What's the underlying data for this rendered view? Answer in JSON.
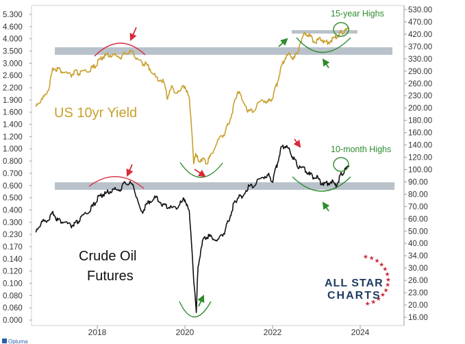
{
  "chart_data": {
    "type": "line",
    "title": "",
    "x_axis": {
      "ticks": [
        "2018",
        "2020",
        "2022",
        "2024"
      ],
      "range": [
        "2016-06",
        "2025-01"
      ]
    },
    "left_axis": {
      "scale": "log",
      "ticks": [
        "5.300",
        "4.600",
        "4.000",
        "3.500",
        "3.000",
        "2.600",
        "2.200",
        "1.900",
        "1.600",
        "1.400",
        "1.200",
        "1.000",
        "0.800",
        "0.700",
        "0.600",
        "0.500",
        "0.400",
        "0.300",
        "0.230",
        "0.170",
        "0.140",
        "0.120",
        "0.100",
        "0.080",
        "0.060",
        "0.000"
      ]
    },
    "right_axis": {
      "scale": "log",
      "ticks": [
        "530.00",
        "470.00",
        "420.00",
        "370.00",
        "330.00",
        "290.00",
        "260.00",
        "230.00",
        "200.00",
        "180.00",
        "160.00",
        "140.00",
        "120.00",
        "100.00",
        "90.00",
        "80.00",
        "70.00",
        "60.00",
        "50.00",
        "40.00",
        "34.00",
        "30.00",
        "26.00",
        "23.00",
        "20.00",
        "16.00"
      ]
    },
    "series": [
      {
        "name": "US 10yr Yield",
        "color": "#c8a02c",
        "x": [
          2016.6,
          2016.75,
          2016.9,
          2017.0,
          2017.1,
          2017.25,
          2017.4,
          2017.5,
          2017.6,
          2017.75,
          2017.9,
          2018.0,
          2018.1,
          2018.2,
          2018.35,
          2018.5,
          2018.6,
          2018.75,
          2018.85,
          2019.0,
          2019.1,
          2019.2,
          2019.35,
          2019.5,
          2019.6,
          2019.7,
          2019.85,
          2020.0,
          2020.1,
          2020.2,
          2020.25,
          2020.3,
          2020.4,
          2020.5,
          2020.6,
          2020.75,
          2020.9,
          2021.0,
          2021.1,
          2021.2,
          2021.3,
          2021.45,
          2021.6,
          2021.75,
          2021.9,
          2022.0,
          2022.1,
          2022.2,
          2022.3,
          2022.4,
          2022.5,
          2022.6,
          2022.75,
          2022.85,
          2023.0,
          2023.1,
          2023.2,
          2023.35,
          2023.45,
          2023.55,
          2023.65,
          2023.75
        ],
        "values": [
          1.45,
          1.55,
          1.85,
          2.45,
          2.42,
          2.3,
          2.2,
          2.32,
          2.25,
          2.35,
          2.45,
          2.62,
          2.85,
          2.95,
          2.98,
          2.85,
          2.95,
          3.15,
          2.95,
          2.65,
          2.6,
          2.45,
          2.1,
          2.05,
          1.6,
          1.85,
          1.7,
          1.9,
          1.55,
          0.6,
          0.72,
          0.64,
          0.66,
          0.62,
          0.7,
          0.85,
          0.95,
          1.1,
          1.35,
          1.75,
          1.6,
          1.3,
          1.35,
          1.55,
          1.5,
          1.6,
          1.95,
          2.5,
          2.9,
          3.0,
          2.8,
          3.3,
          4.1,
          3.85,
          3.55,
          3.8,
          3.5,
          3.7,
          3.8,
          4.1,
          4.2,
          4.3
        ]
      },
      {
        "name": "Crude Oil Futures",
        "color": "#111111",
        "x": [
          2016.6,
          2016.75,
          2016.9,
          2017.0,
          2017.1,
          2017.25,
          2017.4,
          2017.5,
          2017.6,
          2017.75,
          2017.9,
          2018.0,
          2018.1,
          2018.2,
          2018.35,
          2018.5,
          2018.6,
          2018.75,
          2018.85,
          2019.0,
          2019.1,
          2019.2,
          2019.35,
          2019.5,
          2019.6,
          2019.75,
          2019.9,
          2020.0,
          2020.1,
          2020.2,
          2020.26,
          2020.3,
          2020.4,
          2020.5,
          2020.6,
          2020.75,
          2020.9,
          2021.0,
          2021.1,
          2021.2,
          2021.3,
          2021.45,
          2021.6,
          2021.75,
          2021.9,
          2022.0,
          2022.1,
          2022.2,
          2022.3,
          2022.4,
          2022.5,
          2022.6,
          2022.75,
          2022.85,
          2023.0,
          2023.1,
          2023.2,
          2023.35,
          2023.45,
          2023.55,
          2023.65,
          2023.75
        ],
        "values": [
          43,
          47,
          49,
          52,
          48,
          47,
          45,
          46,
          48,
          52,
          56,
          61,
          64,
          65,
          68,
          67,
          72,
          74,
          68,
          52,
          56,
          60,
          62,
          57,
          56,
          55,
          58,
          61,
          52,
          24,
          17,
          28,
          38,
          40,
          40,
          38,
          42,
          48,
          56,
          62,
          63,
          70,
          72,
          78,
          80,
          75,
          90,
          110,
          112,
          105,
          95,
          88,
          85,
          80,
          78,
          74,
          72,
          75,
          70,
          80,
          85,
          88
        ]
      }
    ],
    "annotations": {
      "yield_label": "US 10yr Yield",
      "crude_label_line1": "Crude Oil",
      "crude_label_line2": "Futures",
      "note_top": "15-year Highs",
      "note_mid": "10-month Highs"
    },
    "logo": {
      "line1": "ALL STAR",
      "line2": "CHARTS",
      "color": "#1f3a60",
      "star_color": "#c72a3a"
    },
    "footer": "Optuma",
    "band_color": "#b9c2cb",
    "grid": true
  }
}
